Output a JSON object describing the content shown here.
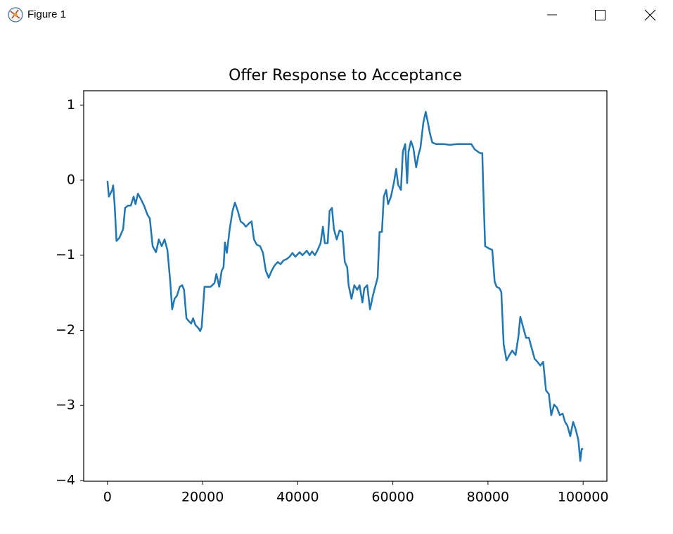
{
  "window": {
    "title": "Figure 1"
  },
  "chart_data": {
    "type": "line",
    "title": "Offer Response to Acceptance",
    "x": [
      0,
      300,
      1000,
      1200,
      1500,
      1900,
      2500,
      3300,
      3700,
      4300,
      4900,
      5500,
      5900,
      6400,
      7000,
      7700,
      8400,
      8900,
      9500,
      10200,
      10800,
      11400,
      12000,
      12600,
      13200,
      13600,
      14100,
      14600,
      15200,
      15700,
      16100,
      16600,
      17000,
      17600,
      18000,
      18500,
      19100,
      19500,
      19800,
      20400,
      21700,
      22500,
      22900,
      23500,
      24000,
      24400,
      24700,
      25100,
      25700,
      26300,
      26800,
      27400,
      28000,
      28600,
      29100,
      29700,
      30300,
      30800,
      31400,
      32100,
      32700,
      33300,
      33900,
      34500,
      35100,
      35800,
      36400,
      37000,
      37700,
      38300,
      38900,
      39500,
      40400,
      41000,
      41900,
      42500,
      43000,
      43600,
      44200,
      44800,
      45300,
      45700,
      46300,
      46700,
      47200,
      47600,
      48200,
      48800,
      49400,
      49900,
      50400,
      50700,
      51300,
      51900,
      52500,
      53000,
      53600,
      54000,
      54600,
      55200,
      55800,
      56200,
      56800,
      57200,
      57700,
      58100,
      58600,
      59000,
      59600,
      60200,
      60700,
      61100,
      61700,
      62100,
      62600,
      63000,
      63300,
      63800,
      64300,
      64900,
      65400,
      65800,
      66400,
      66900,
      67300,
      67800,
      68300,
      69100,
      70600,
      72000,
      73500,
      75000,
      76500,
      77200,
      78300,
      78800,
      79000,
      79400,
      80200,
      80900,
      81400,
      81800,
      82400,
      82800,
      83300,
      83900,
      84500,
      85100,
      85800,
      86400,
      86800,
      87400,
      88000,
      88600,
      89200,
      89800,
      90400,
      91000,
      91600,
      92200,
      92800,
      93300,
      93900,
      94500,
      95100,
      95700,
      96200,
      96700,
      97300,
      97900,
      98400,
      99000,
      99400,
      99700,
      100000
    ],
    "series": [
      {
        "color": "#1f77b4",
        "values": [
          -0.01,
          -0.22,
          -0.13,
          -0.07,
          -0.32,
          -0.81,
          -0.77,
          -0.65,
          -0.37,
          -0.34,
          -0.34,
          -0.22,
          -0.32,
          -0.18,
          -0.25,
          -0.34,
          -0.46,
          -0.51,
          -0.88,
          -0.96,
          -0.79,
          -0.88,
          -0.79,
          -0.93,
          -1.35,
          -1.72,
          -1.58,
          -1.54,
          -1.42,
          -1.4,
          -1.46,
          -1.84,
          -1.87,
          -1.91,
          -1.84,
          -1.93,
          -1.97,
          -2.01,
          -1.96,
          -1.42,
          -1.42,
          -1.37,
          -1.25,
          -1.42,
          -1.21,
          -1.16,
          -0.83,
          -0.97,
          -0.65,
          -0.41,
          -0.3,
          -0.41,
          -0.55,
          -0.58,
          -0.62,
          -0.58,
          -0.55,
          -0.79,
          -0.86,
          -0.88,
          -0.97,
          -1.21,
          -1.3,
          -1.21,
          -1.14,
          -1.09,
          -1.12,
          -1.07,
          -1.05,
          -1.02,
          -0.97,
          -1.02,
          -0.96,
          -1.0,
          -0.94,
          -1.0,
          -0.95,
          -1.0,
          -0.93,
          -0.84,
          -0.62,
          -0.84,
          -0.84,
          -0.41,
          -0.37,
          -0.65,
          -0.79,
          -0.67,
          -0.69,
          -1.09,
          -1.16,
          -1.4,
          -1.58,
          -1.4,
          -1.46,
          -1.4,
          -1.63,
          -1.44,
          -1.4,
          -1.72,
          -1.54,
          -1.44,
          -1.3,
          -0.69,
          -0.69,
          -0.22,
          -0.13,
          -0.32,
          -0.22,
          -0.04,
          0.15,
          -0.06,
          -0.13,
          0.38,
          0.48,
          -0.04,
          0.38,
          0.52,
          0.43,
          0.17,
          0.34,
          0.43,
          0.76,
          0.91,
          0.79,
          0.62,
          0.5,
          0.48,
          0.48,
          0.47,
          0.48,
          0.48,
          0.48,
          0.41,
          0.36,
          0.36,
          -0.09,
          -0.88,
          -0.91,
          -0.93,
          -1.35,
          -1.42,
          -1.44,
          -1.49,
          -2.19,
          -2.4,
          -2.33,
          -2.27,
          -2.33,
          -2.08,
          -1.82,
          -1.96,
          -2.1,
          -2.1,
          -2.24,
          -2.38,
          -2.42,
          -2.47,
          -2.42,
          -2.8,
          -2.85,
          -3.13,
          -2.99,
          -3.03,
          -3.13,
          -3.11,
          -3.22,
          -3.27,
          -3.41,
          -3.22,
          -3.31,
          -3.46,
          -3.74,
          -3.58,
          -3.58
        ]
      }
    ],
    "xlim": [
      -5000,
      105000
    ],
    "ylim": [
      -4.01,
      1.19
    ],
    "xticks": [
      0,
      20000,
      40000,
      60000,
      80000,
      100000
    ],
    "yticks": [
      {
        "value": -4,
        "label": "−4"
      },
      {
        "value": -3,
        "label": "−3"
      },
      {
        "value": -2,
        "label": "−2"
      },
      {
        "value": -1,
        "label": "−1"
      },
      0,
      1
    ],
    "grid": false
  }
}
